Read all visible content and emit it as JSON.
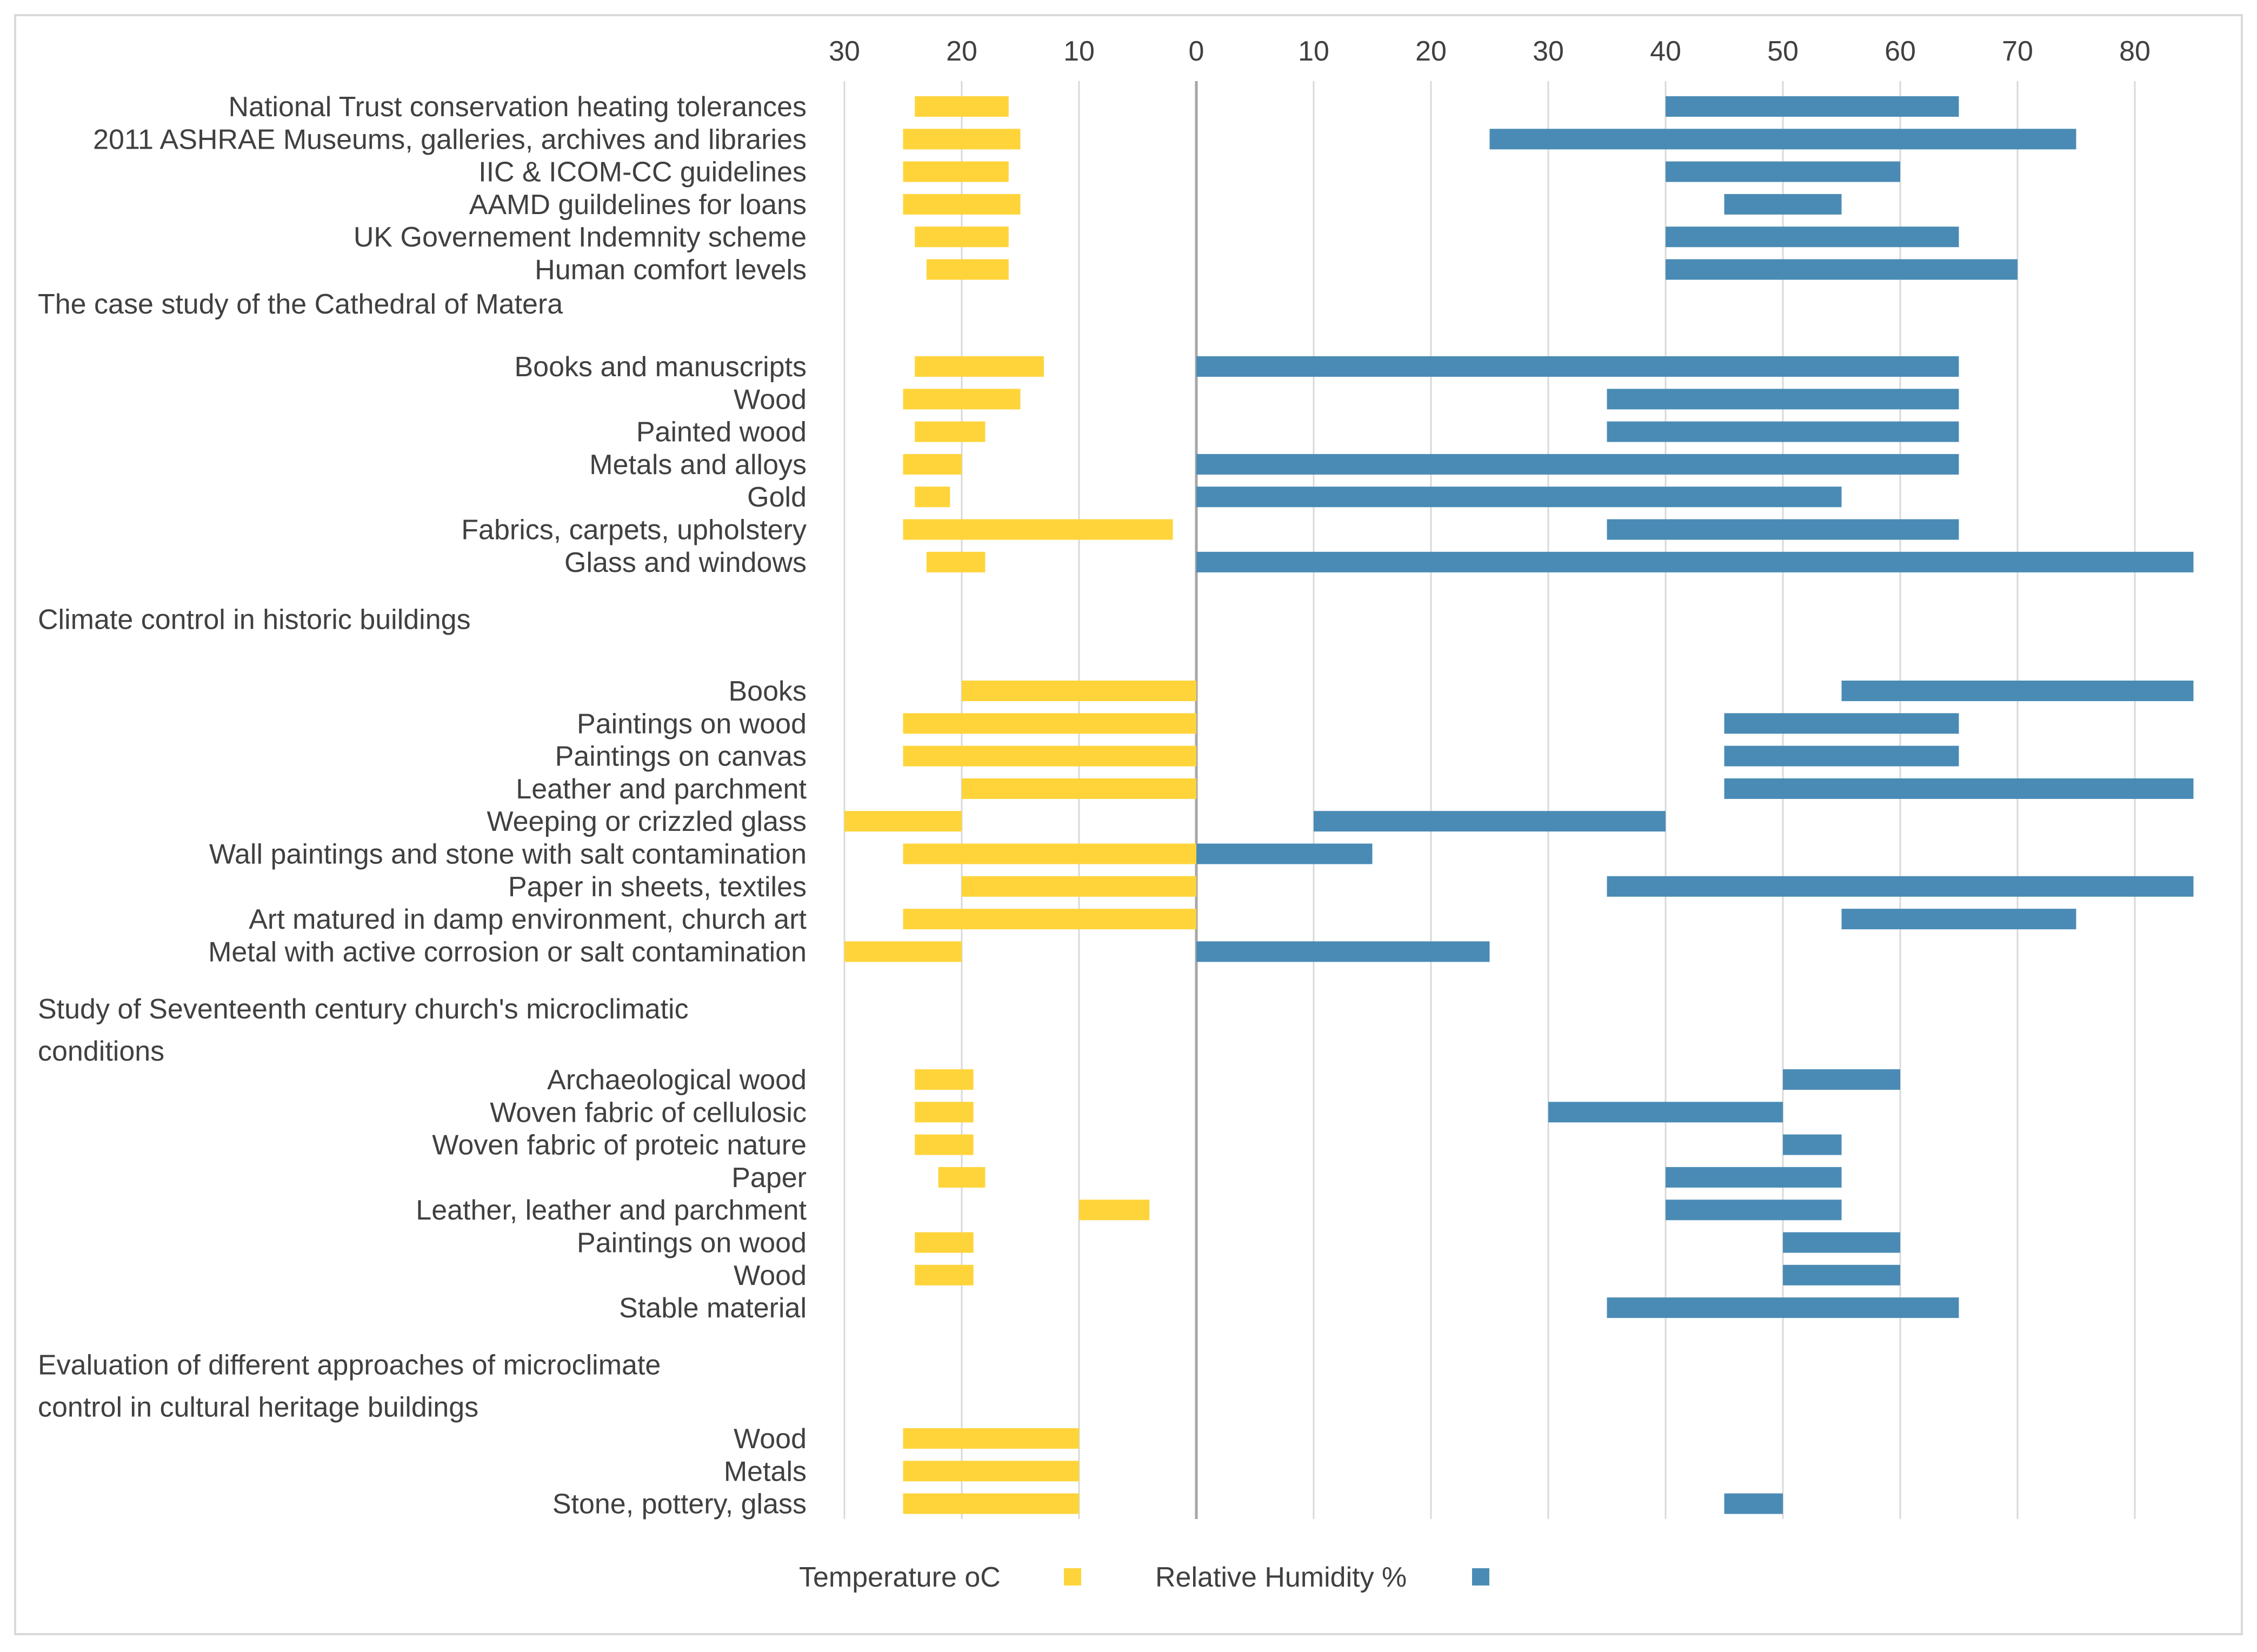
{
  "chart_data": {
    "type": "bar",
    "orientation": "horizontal",
    "x_axis_tick_labels": [
      "30",
      "20",
      "10",
      "0",
      "10",
      "20",
      "30",
      "40",
      "50",
      "60",
      "70",
      "80"
    ],
    "x_axis_position": "top",
    "x_range_temperature": [
      30,
      0
    ],
    "x_range_humidity": [
      0,
      85
    ],
    "gridlines": true,
    "legend_position": "bottom",
    "series": [
      {
        "name": "Temperature oC",
        "color": "#FFD43B"
      },
      {
        "name": "Relative Humidity %",
        "color": "#4A8BB5"
      }
    ],
    "groups": [
      {
        "title": "",
        "rows": [
          {
            "label": "National Trust conservation heating tolerances",
            "temperature": [
              16,
              24
            ],
            "humidity": [
              40,
              65
            ]
          },
          {
            "label": "2011 ASHRAE Museums, galleries, archives and libraries",
            "temperature": [
              15,
              25
            ],
            "humidity": [
              25,
              75
            ]
          },
          {
            "label": "IIC & ICOM-CC guidelines",
            "temperature": [
              16,
              25
            ],
            "humidity": [
              40,
              60
            ]
          },
          {
            "label": "AAMD guildelines for loans",
            "temperature": [
              15,
              25
            ],
            "humidity": [
              45,
              55
            ]
          },
          {
            "label": "UK Governement Indemnity scheme",
            "temperature": [
              16,
              24
            ],
            "humidity": [
              40,
              65
            ]
          },
          {
            "label": "Human comfort levels",
            "temperature": [
              16,
              23
            ],
            "humidity": [
              40,
              70
            ]
          }
        ]
      },
      {
        "title": "The case study of the Cathedral of Matera",
        "rows": [
          {
            "label": "Books and manuscripts",
            "temperature": [
              13,
              24
            ],
            "humidity": [
              0,
              65
            ]
          },
          {
            "label": "Wood",
            "temperature": [
              15,
              25
            ],
            "humidity": [
              35,
              65
            ]
          },
          {
            "label": "Painted wood",
            "temperature": [
              18,
              24
            ],
            "humidity": [
              35,
              65
            ]
          },
          {
            "label": "Metals and alloys",
            "temperature": [
              20,
              25
            ],
            "humidity": [
              0,
              65
            ]
          },
          {
            "label": "Gold",
            "temperature": [
              21,
              24
            ],
            "humidity": [
              0,
              55
            ]
          },
          {
            "label": "Fabrics, carpets, upholstery",
            "temperature": [
              2,
              25
            ],
            "humidity": [
              35,
              65
            ]
          },
          {
            "label": "Glass and windows",
            "temperature": [
              18,
              23
            ],
            "humidity": [
              0,
              85
            ]
          }
        ]
      },
      {
        "title": "Climate control in historic buildings",
        "rows": [
          {
            "label": "Books",
            "temperature": [
              0,
              20
            ],
            "humidity": [
              55,
              85
            ]
          },
          {
            "label": "Paintings on wood",
            "temperature": [
              0,
              25
            ],
            "humidity": [
              45,
              65
            ]
          },
          {
            "label": "Paintings on canvas",
            "temperature": [
              0,
              25
            ],
            "humidity": [
              45,
              65
            ]
          },
          {
            "label": "Leather and parchment",
            "temperature": [
              0,
              20
            ],
            "humidity": [
              45,
              85
            ]
          },
          {
            "label": "Weeping or crizzled glass",
            "temperature": [
              20,
              30
            ],
            "humidity": [
              10,
              40
            ]
          },
          {
            "label": "Wall paintings and stone with salt contamination",
            "temperature": [
              0,
              25
            ],
            "humidity": [
              0,
              15
            ]
          },
          {
            "label": "Paper in sheets, textiles",
            "temperature": [
              0,
              20
            ],
            "humidity": [
              35,
              85
            ]
          },
          {
            "label": "Art matured in damp environment, church art",
            "temperature": [
              0,
              25
            ],
            "humidity": [
              55,
              75
            ]
          },
          {
            "label": "Metal with active corrosion or salt contamination",
            "temperature": [
              20,
              30
            ],
            "humidity": [
              0,
              25
            ]
          }
        ]
      },
      {
        "title": "Study of Seventeenth century church's microclimatic conditions",
        "title_lines": [
          "Study of Seventeenth century church's microclimatic",
          "conditions"
        ],
        "rows": [
          {
            "label": "Archaeological wood",
            "temperature": [
              19,
              24
            ],
            "humidity": [
              50,
              60
            ]
          },
          {
            "label": "Woven fabric of cellulosic",
            "temperature": [
              19,
              24
            ],
            "humidity": [
              30,
              50
            ]
          },
          {
            "label": "Woven fabric of proteic nature",
            "temperature": [
              19,
              24
            ],
            "humidity": [
              50,
              55
            ]
          },
          {
            "label": "Paper",
            "temperature": [
              18,
              22
            ],
            "humidity": [
              40,
              55
            ]
          },
          {
            "label": "Leather, leather and parchment",
            "temperature": [
              4,
              10
            ],
            "humidity": [
              40,
              55
            ]
          },
          {
            "label": "Paintings on wood",
            "temperature": [
              19,
              24
            ],
            "humidity": [
              50,
              60
            ]
          },
          {
            "label": "Wood",
            "temperature": [
              19,
              24
            ],
            "humidity": [
              50,
              60
            ]
          },
          {
            "label": "Stable material",
            "temperature": null,
            "humidity": [
              35,
              65
            ]
          }
        ]
      },
      {
        "title": "Evaluation of different approaches of microclimate control in cultural heritage buildings",
        "title_lines": [
          "Evaluation of different approaches of microclimate",
          "control in cultural heritage buildings"
        ],
        "rows": [
          {
            "label": "Wood",
            "temperature": [
              10,
              25
            ],
            "humidity": null
          },
          {
            "label": "Metals",
            "temperature": [
              10,
              25
            ],
            "humidity": null
          },
          {
            "label": "Stone, pottery, glass",
            "temperature": [
              10,
              25
            ],
            "humidity": [
              45,
              50
            ]
          }
        ]
      }
    ]
  }
}
